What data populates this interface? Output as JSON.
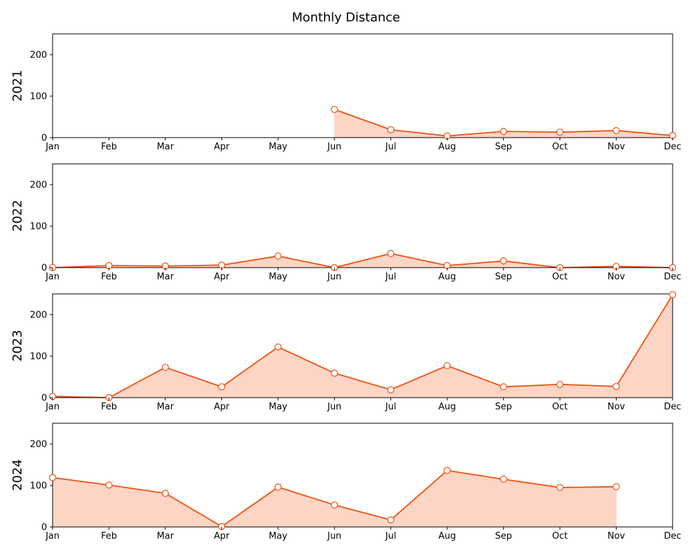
{
  "chart_data": {
    "type": "area",
    "title": "Monthly Distance",
    "xlabel": "",
    "ylabel": "",
    "ylim": [
      0,
      250
    ],
    "yticks": [
      0,
      100,
      200
    ],
    "categories": [
      "Jan",
      "Feb",
      "Mar",
      "Apr",
      "May",
      "Jun",
      "Jul",
      "Aug",
      "Sep",
      "Oct",
      "Nov",
      "Dec"
    ],
    "line_color": "#f0500f",
    "fill_color": "#fdd5c5",
    "marker_face": "#ffffff",
    "series": [
      {
        "name": "2021",
        "values": [
          null,
          null,
          null,
          null,
          null,
          68,
          19,
          4,
          15,
          13,
          17,
          5
        ]
      },
      {
        "name": "2022",
        "values": [
          0,
          5,
          4,
          6,
          28,
          0,
          34,
          5,
          16,
          0,
          3,
          0
        ]
      },
      {
        "name": "2023",
        "values": [
          3,
          0,
          73,
          26,
          122,
          59,
          19,
          77,
          26,
          32,
          27,
          248
        ]
      },
      {
        "name": "2024",
        "values": [
          119,
          101,
          81,
          1,
          96,
          53,
          17,
          136,
          115,
          95,
          97,
          null
        ]
      }
    ]
  }
}
